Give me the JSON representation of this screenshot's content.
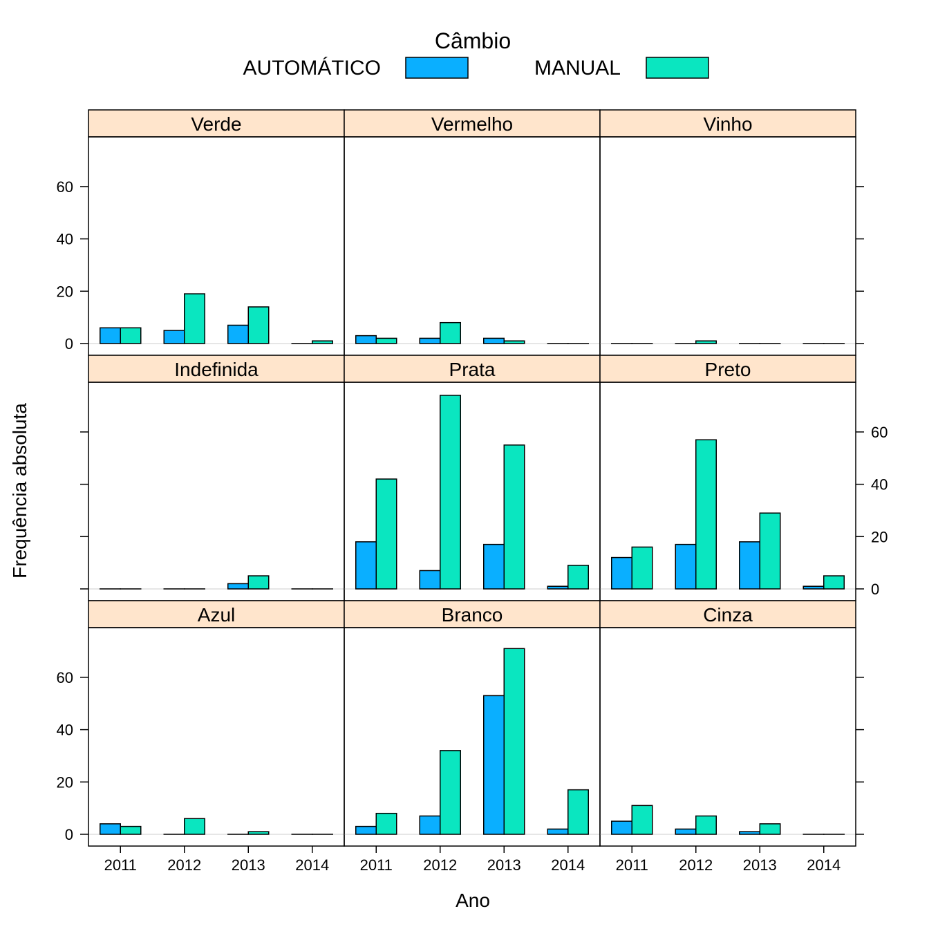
{
  "chart_data": {
    "type": "bar",
    "xlabel": "Ano",
    "ylabel": "Frequência absoluta",
    "categories": [
      "2011",
      "2012",
      "2013",
      "2014"
    ],
    "ylim": [
      -4.5,
      79
    ],
    "yticks": [
      0,
      20,
      40,
      60
    ],
    "legend": {
      "title": "Câmbio",
      "placement": "top",
      "items": [
        {
          "name": "AUTOMÁTICO",
          "color": "#0aafff"
        },
        {
          "name": "MANUAL",
          "color": "#0ae6c0"
        }
      ]
    },
    "colors": {
      "strip_background": "#ffe5cc",
      "zero_line": "#e6e6e6"
    },
    "panels": [
      {
        "title": "Verde",
        "series": [
          {
            "name": "AUTOMÁTICO",
            "values": [
              6,
              5,
              7,
              0
            ]
          },
          {
            "name": "MANUAL",
            "values": [
              6,
              19,
              14,
              1
            ]
          }
        ]
      },
      {
        "title": "Vermelho",
        "series": [
          {
            "name": "AUTOMÁTICO",
            "values": [
              3,
              2,
              2,
              0
            ]
          },
          {
            "name": "MANUAL",
            "values": [
              2,
              8,
              1,
              0
            ]
          }
        ]
      },
      {
        "title": "Vinho",
        "series": [
          {
            "name": "AUTOMÁTICO",
            "values": [
              0,
              0,
              0,
              0
            ]
          },
          {
            "name": "MANUAL",
            "values": [
              0,
              1,
              0,
              0
            ]
          }
        ]
      },
      {
        "title": "Indefinida",
        "series": [
          {
            "name": "AUTOMÁTICO",
            "values": [
              0,
              0,
              2,
              0
            ]
          },
          {
            "name": "MANUAL",
            "values": [
              0,
              0,
              5,
              0
            ]
          }
        ]
      },
      {
        "title": "Prata",
        "series": [
          {
            "name": "AUTOMÁTICO",
            "values": [
              18,
              7,
              17,
              1
            ]
          },
          {
            "name": "MANUAL",
            "values": [
              42,
              74,
              55,
              9
            ]
          }
        ]
      },
      {
        "title": "Preto",
        "series": [
          {
            "name": "AUTOMÁTICO",
            "values": [
              12,
              17,
              18,
              1
            ]
          },
          {
            "name": "MANUAL",
            "values": [
              16,
              57,
              29,
              5
            ]
          }
        ]
      },
      {
        "title": "Azul",
        "series": [
          {
            "name": "AUTOMÁTICO",
            "values": [
              4,
              0,
              0,
              0
            ]
          },
          {
            "name": "MANUAL",
            "values": [
              3,
              6,
              1,
              0
            ]
          }
        ]
      },
      {
        "title": "Branco",
        "series": [
          {
            "name": "AUTOMÁTICO",
            "values": [
              3,
              7,
              53,
              2
            ]
          },
          {
            "name": "MANUAL",
            "values": [
              8,
              32,
              71,
              17
            ]
          }
        ]
      },
      {
        "title": "Cinza",
        "series": [
          {
            "name": "AUTOMÁTICO",
            "values": [
              5,
              2,
              1,
              0
            ]
          },
          {
            "name": "MANUAL",
            "values": [
              11,
              7,
              4,
              0
            ]
          }
        ]
      }
    ]
  }
}
